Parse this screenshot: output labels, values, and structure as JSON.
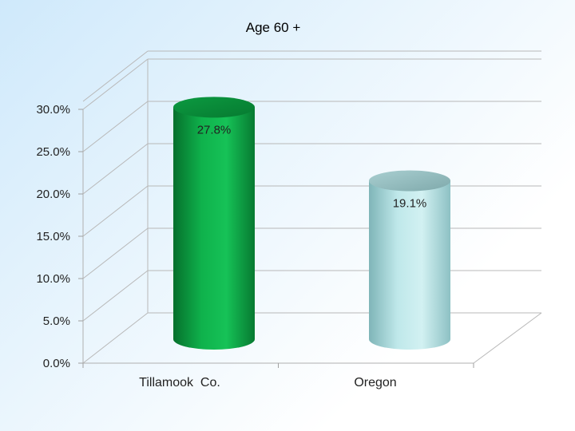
{
  "chart_data": {
    "type": "bar",
    "title": "Age 60 +",
    "categories": [
      "Tillamook  Co.",
      "Oregon"
    ],
    "values": [
      27.8,
      19.1
    ],
    "data_labels": [
      "27.8%",
      "19.1%"
    ],
    "ylim": [
      0,
      30
    ],
    "y_ticks": [
      0,
      5,
      10,
      15,
      20,
      25,
      30
    ],
    "y_tick_labels": [
      "0.0%",
      "5.0%",
      "10.0%",
      "15.0%",
      "20.0%",
      "25.0%",
      "30.0%"
    ],
    "grid": true,
    "style": "3d-cylinder",
    "colors": [
      "#00a33f",
      "#9fd8da"
    ]
  }
}
